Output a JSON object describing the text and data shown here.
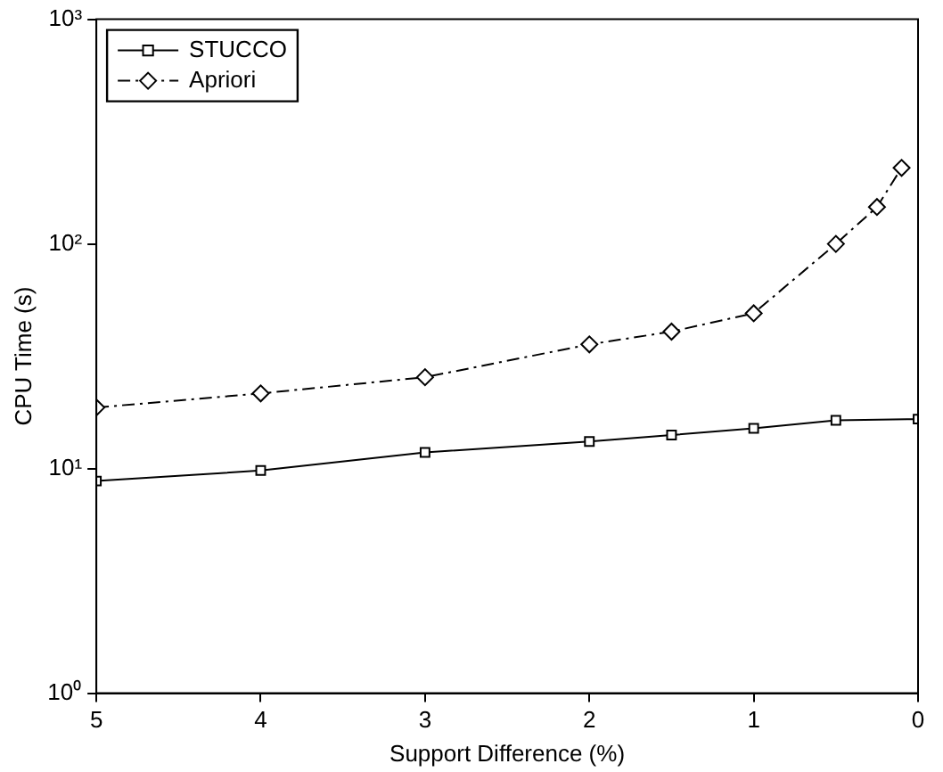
{
  "chart_data": {
    "type": "line",
    "xlabel": "Support Difference (%)",
    "ylabel": "CPU Time (s)",
    "log": "y",
    "grid": false,
    "legend": "top left",
    "xlim": [
      5,
      0
    ],
    "xticks": [
      5,
      4,
      3,
      2,
      1,
      0
    ],
    "ylim": [
      1,
      1000
    ],
    "yticks": [
      {
        "value": 1,
        "label": "10⁰"
      },
      {
        "value": 10,
        "label": "10¹"
      },
      {
        "value": 100,
        "label": "10²"
      },
      {
        "value": 1000,
        "label": "10³"
      }
    ],
    "series": [
      {
        "name": "STUCCO",
        "color": "#000000",
        "marker": "square",
        "line_style": "solid",
        "x": [
          5,
          4,
          3,
          2,
          1.5,
          1,
          0.5,
          0
        ],
        "values": [
          8.8,
          9.8,
          11.8,
          13.2,
          14.1,
          15.1,
          16.4,
          16.6
        ]
      },
      {
        "name": "Apriori",
        "color": "#000000",
        "marker": "diamond",
        "line_style": "dashed",
        "x": [
          5,
          4,
          3,
          2,
          1.5,
          1,
          0.5,
          0.25,
          0.1
        ],
        "values": [
          18.7,
          21.6,
          25.5,
          35.7,
          40.7,
          49.1,
          100,
          146,
          218
        ]
      }
    ]
  }
}
